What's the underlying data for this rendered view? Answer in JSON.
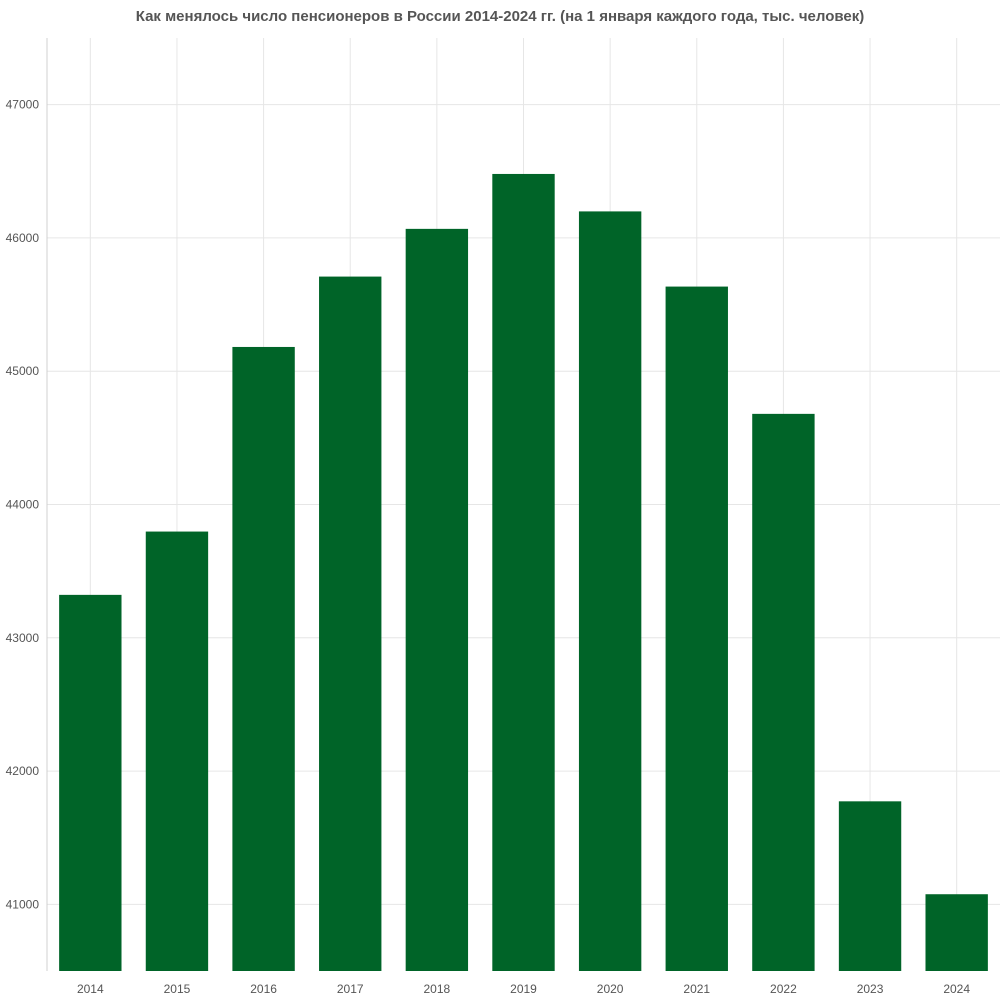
{
  "chart_data": {
    "type": "bar",
    "title": "Как менялось число пенсионеров в России 2014-2024 гг. (на 1 января каждого года, тыс. человек)",
    "categories": [
      "2014",
      "2015",
      "2016",
      "2017",
      "2018",
      "2019",
      "2020",
      "2021",
      "2022",
      "2023",
      "2024"
    ],
    "values": [
      43322,
      43797,
      45182,
      45710,
      46068,
      46480,
      46199,
      45635,
      44680,
      41773,
      41076
    ],
    "ylim": [
      40500,
      47500
    ],
    "yticks": [
      41000,
      42000,
      43000,
      44000,
      45000,
      46000,
      47000
    ],
    "grid": true,
    "legend": "none",
    "bar_color": "#006428"
  }
}
